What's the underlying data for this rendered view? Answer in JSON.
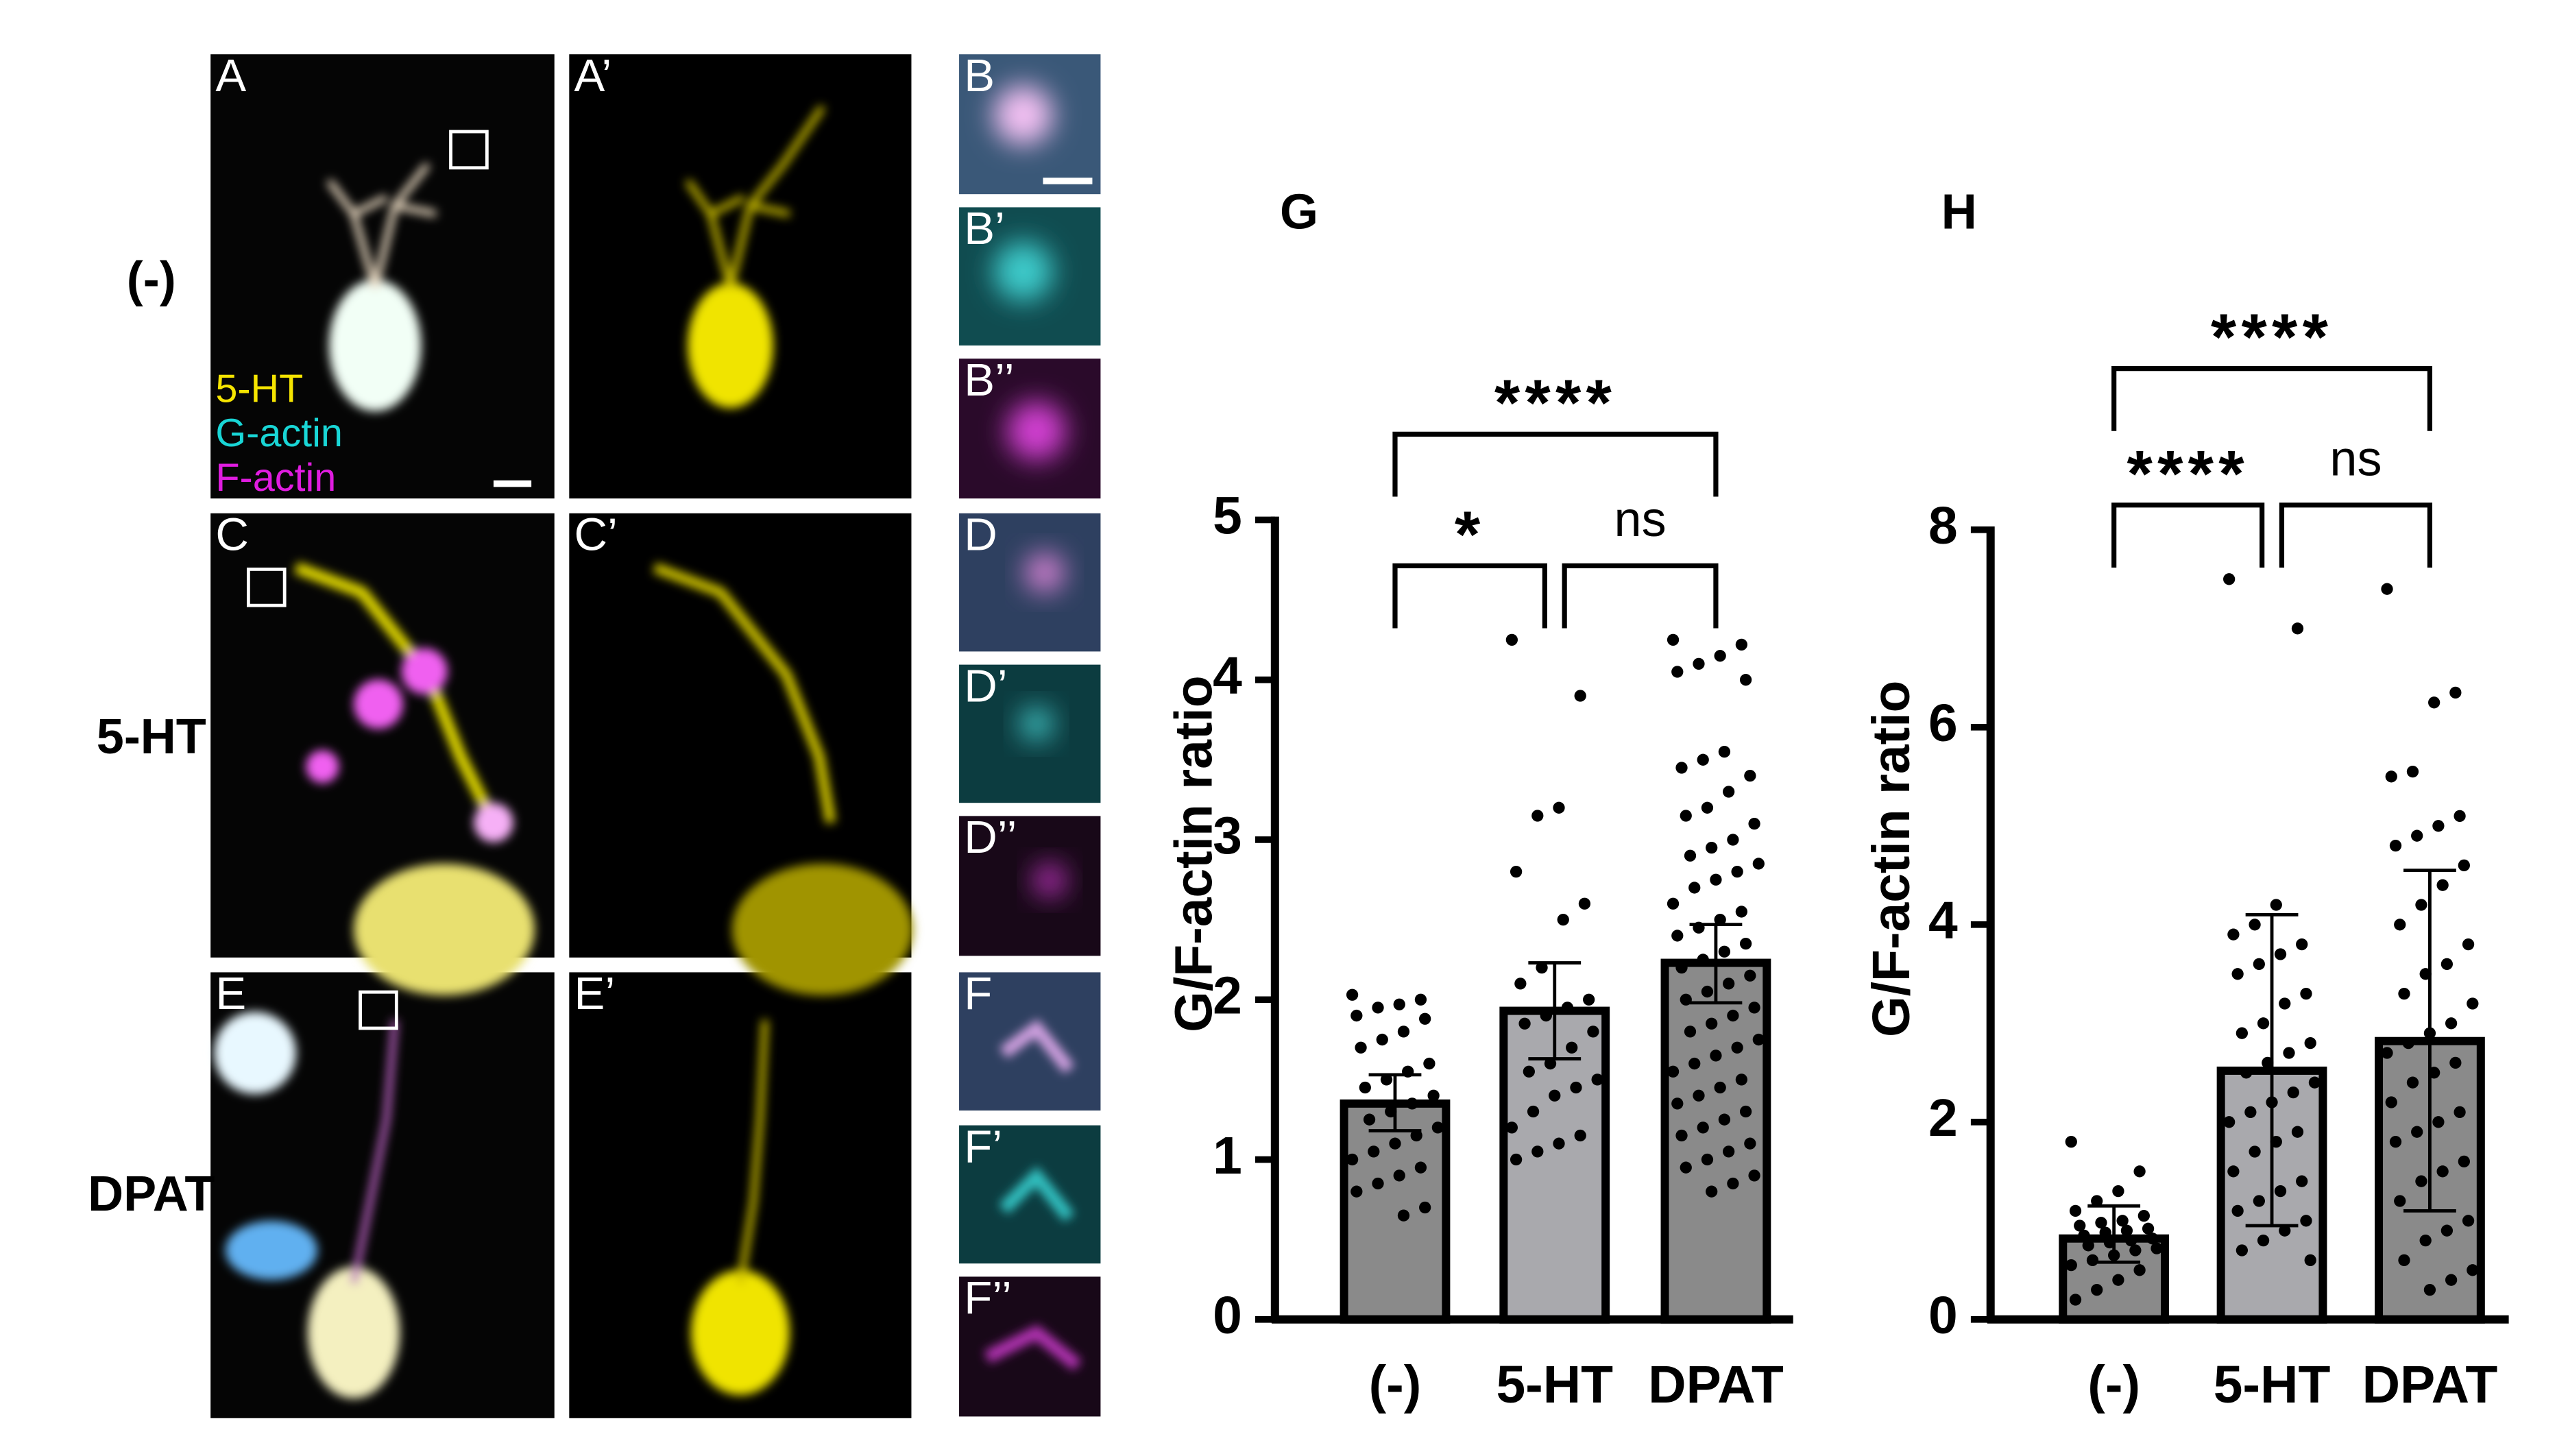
{
  "panels": {
    "labels": [
      "A",
      "A’",
      "B",
      "B’",
      "B’’",
      "C",
      "C’",
      "D",
      "D’",
      "D’’",
      "E",
      "E’",
      "F",
      "F’",
      "F’’"
    ],
    "rows": [
      "(-)",
      "5-HT",
      "DPAT"
    ],
    "legend": [
      {
        "text": "5-HT",
        "color": "#f5e400"
      },
      {
        "text": "G-actin",
        "color": "#19d6d6"
      },
      {
        "text": "F-actin",
        "color": "#e01ce0"
      }
    ]
  },
  "chart_data": [
    {
      "type": "bar",
      "title": "G",
      "y_label": "G/F-actin ratio",
      "categories": [
        "(-)",
        "5-HT",
        "DPAT"
      ],
      "values": [
        1.35,
        1.93,
        2.23
      ],
      "error_low": [
        1.18,
        1.63,
        1.98
      ],
      "error_high": [
        1.53,
        2.23,
        2.47
      ],
      "colors": [
        "#8a8a8a",
        "#a9a9ad",
        "#8a8a8a"
      ],
      "points": [
        [
          2.03,
          2.0,
          1.97,
          1.95,
          1.9,
          1.88,
          1.8,
          1.75,
          1.7,
          1.6,
          1.55,
          1.5,
          1.45,
          1.4,
          1.35,
          1.3,
          1.25,
          1.2,
          1.15,
          1.1,
          1.05,
          1.0,
          0.95,
          0.9,
          0.85,
          0.8,
          0.7,
          0.65
        ],
        [
          4.25,
          3.9,
          3.2,
          3.15,
          2.8,
          2.6,
          2.5,
          2.2,
          2.1,
          2.0,
          1.95,
          1.9,
          1.85,
          1.8,
          1.7,
          1.6,
          1.55,
          1.5,
          1.45,
          1.4,
          1.3,
          1.2,
          1.15,
          1.1,
          1.05,
          1.0
        ],
        [
          4.25,
          4.22,
          4.15,
          4.1,
          4.05,
          4.0,
          3.55,
          3.5,
          3.45,
          3.4,
          3.3,
          3.2,
          3.15,
          3.1,
          3.0,
          2.95,
          2.9,
          2.85,
          2.8,
          2.75,
          2.7,
          2.6,
          2.55,
          2.5,
          2.45,
          2.4,
          2.35,
          2.3,
          2.25,
          2.2,
          2.15,
          2.1,
          2.05,
          2.0,
          1.95,
          1.9,
          1.85,
          1.8,
          1.75,
          1.7,
          1.65,
          1.6,
          1.55,
          1.5,
          1.45,
          1.4,
          1.35,
          1.3,
          1.25,
          1.2,
          1.15,
          1.1,
          1.05,
          1.0,
          0.95,
          0.9,
          0.85,
          0.8
        ]
      ],
      "comparisons": [
        {
          "between": [
            "(-)",
            "5-HT"
          ],
          "label": "*"
        },
        {
          "between": [
            "5-HT",
            "DPAT"
          ],
          "label": "ns"
        },
        {
          "between": [
            "(-)",
            "DPAT"
          ],
          "label": "****"
        }
      ],
      "ylim": [
        0,
        5
      ],
      "yticks": [
        0,
        1,
        2,
        3,
        4,
        5
      ]
    },
    {
      "type": "bar",
      "title": "H",
      "y_label": "G/F-actin ratio",
      "categories": [
        "(-)",
        "5-HT",
        "DPAT"
      ],
      "values": [
        0.82,
        2.52,
        2.82
      ],
      "error_low": [
        0.58,
        0.95,
        1.1
      ],
      "error_high": [
        1.15,
        4.1,
        4.55
      ],
      "colors": [
        "#8a8a8a",
        "#a9a9ad",
        "#8a8a8a"
      ],
      "points": [
        [
          1.8,
          1.5,
          1.3,
          1.2,
          1.1,
          1.05,
          1.0,
          0.98,
          0.95,
          0.92,
          0.9,
          0.88,
          0.85,
          0.82,
          0.8,
          0.78,
          0.75,
          0.72,
          0.7,
          0.65,
          0.6,
          0.55,
          0.5,
          0.4,
          0.3,
          0.2
        ],
        [
          7.5,
          7.0,
          4.2,
          4.0,
          3.9,
          3.8,
          3.7,
          3.6,
          3.5,
          3.3,
          3.2,
          3.0,
          2.9,
          2.8,
          2.7,
          2.6,
          2.5,
          2.4,
          2.3,
          2.2,
          2.1,
          2.0,
          1.9,
          1.8,
          1.7,
          1.5,
          1.4,
          1.3,
          1.2,
          1.1,
          1.0,
          0.9,
          0.8,
          0.7,
          0.6
        ],
        [
          7.4,
          6.35,
          6.25,
          5.55,
          5.5,
          5.1,
          5.0,
          4.9,
          4.8,
          4.6,
          4.4,
          4.2,
          4.0,
          3.8,
          3.6,
          3.5,
          3.3,
          3.2,
          3.0,
          2.9,
          2.8,
          2.7,
          2.6,
          2.5,
          2.4,
          2.2,
          2.1,
          2.0,
          1.9,
          1.8,
          1.6,
          1.5,
          1.4,
          1.2,
          1.0,
          0.9,
          0.8,
          0.6,
          0.5,
          0.4,
          0.3
        ]
      ],
      "comparisons": [
        {
          "between": [
            "(-)",
            "5-HT"
          ],
          "label": "****"
        },
        {
          "between": [
            "5-HT",
            "DPAT"
          ],
          "label": "ns"
        },
        {
          "between": [
            "(-)",
            "DPAT"
          ],
          "label": "****"
        }
      ],
      "ylim": [
        0,
        8
      ],
      "yticks": [
        0,
        2,
        4,
        6,
        8
      ]
    }
  ]
}
